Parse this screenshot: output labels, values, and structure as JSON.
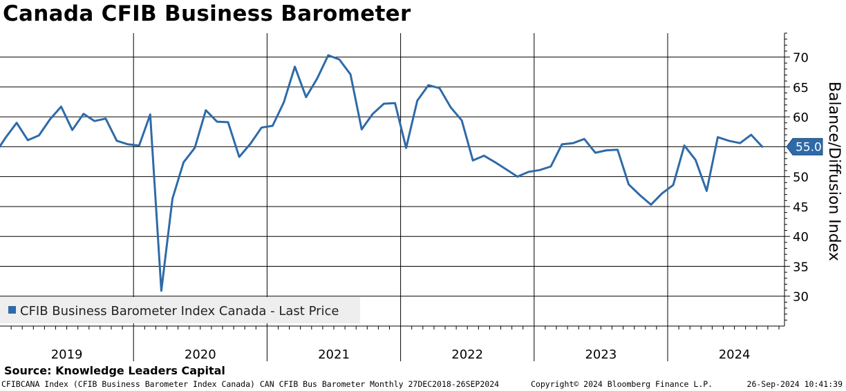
{
  "title": "Canada CFIB Business Barometer",
  "source": "Source: Knowledge Leaders Capital",
  "footer": {
    "left": "CFIBCANA Index (CFIB Business Barometer Index Canada) CAN CFIB Bus Barometer  Monthly 27DEC2018-26SEP2024",
    "center": "Copyright© 2024 Bloomberg Finance L.P.",
    "right": "26-Sep-2024 10:41:39"
  },
  "colors": {
    "line": "#2e6aa8",
    "grid": "#000000"
  },
  "chart_data": {
    "type": "line",
    "ylabel": "Balance/Diffusion Index",
    "ylim": [
      25,
      74
    ],
    "yticks": [
      30,
      35,
      40,
      45,
      50,
      55,
      60,
      65,
      70
    ],
    "x_year_labels": [
      "2019",
      "2020",
      "2021",
      "2022",
      "2023",
      "2024"
    ],
    "grid": "on",
    "legend": {
      "placement": "bottom-left",
      "label": "CFIB Business Barometer Index Canada - Last Price"
    },
    "last_value_label": "55.0",
    "series": [
      {
        "name": "CFIB Business Barometer Index Canada - Last Price",
        "dates": [
          "2018-12",
          "2019-01",
          "2019-02",
          "2019-03",
          "2019-04",
          "2019-05",
          "2019-06",
          "2019-07",
          "2019-08",
          "2019-09",
          "2019-10",
          "2019-11",
          "2019-12",
          "2020-01",
          "2020-02",
          "2020-03",
          "2020-04",
          "2020-05",
          "2020-06",
          "2020-07",
          "2020-08",
          "2020-09",
          "2020-10",
          "2020-11",
          "2020-12",
          "2021-01",
          "2021-02",
          "2021-03",
          "2021-04",
          "2021-05",
          "2021-06",
          "2021-07",
          "2021-08",
          "2021-09",
          "2021-10",
          "2021-11",
          "2021-12",
          "2022-01",
          "2022-02",
          "2022-03",
          "2022-04",
          "2022-05",
          "2022-06",
          "2022-07",
          "2022-08",
          "2022-09",
          "2022-10",
          "2022-11",
          "2022-12",
          "2023-01",
          "2023-02",
          "2023-03",
          "2023-04",
          "2023-05",
          "2023-06",
          "2023-07",
          "2023-08",
          "2023-09",
          "2023-10",
          "2023-11",
          "2023-12",
          "2024-01",
          "2024-02",
          "2024-03",
          "2024-04",
          "2024-05",
          "2024-06",
          "2024-07",
          "2024-08",
          "2024-09"
        ],
        "values": [
          53.7,
          56.5,
          59.0,
          56.1,
          56.9,
          59.6,
          61.7,
          57.8,
          60.5,
          59.3,
          59.7,
          56.0,
          55.4,
          55.2,
          60.4,
          30.9,
          46.3,
          52.4,
          54.8,
          61.1,
          59.2,
          59.1,
          53.3,
          55.5,
          58.2,
          58.5,
          62.4,
          68.4,
          63.3,
          66.4,
          70.3,
          69.6,
          67.1,
          57.9,
          60.5,
          62.2,
          62.3,
          54.8,
          62.7,
          65.3,
          64.8,
          61.6,
          59.4,
          52.7,
          53.5,
          52.4,
          51.2,
          50.0,
          50.8,
          51.1,
          51.7,
          55.4,
          55.6,
          56.3,
          54.0,
          54.4,
          54.5,
          48.7,
          46.9,
          45.3,
          47.2,
          48.6,
          55.2,
          52.8,
          47.6,
          56.6,
          56.0,
          55.6,
          57.0,
          55.0
        ]
      }
    ]
  }
}
